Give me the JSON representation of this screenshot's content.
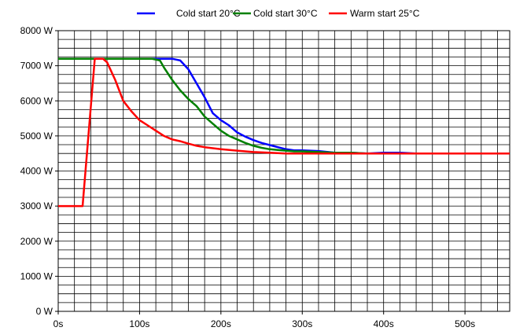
{
  "chart_data": {
    "type": "line",
    "title": "",
    "xlabel": "",
    "ylabel": "",
    "xlim": [
      0,
      555
    ],
    "ylim": [
      0,
      8000
    ],
    "x_ticks": [
      0,
      100,
      200,
      300,
      400,
      500
    ],
    "x_tick_labels": [
      "0s",
      "100s",
      "200s",
      "300s",
      "400s",
      "500s"
    ],
    "y_ticks": [
      0,
      1000,
      2000,
      3000,
      4000,
      5000,
      6000,
      7000,
      8000
    ],
    "y_tick_labels": [
      "0 W",
      "1000 W",
      "2000 W",
      "3000 W",
      "4000 W",
      "5000 W",
      "6000 W",
      "7000 W",
      "8000 W"
    ],
    "grid": true,
    "legend_position": "top-center",
    "series": [
      {
        "name": "Cold start 20°C",
        "color": "#0000ff",
        "x": [
          0,
          20,
          40,
          60,
          80,
          100,
          120,
          140,
          150,
          160,
          170,
          180,
          190,
          200,
          210,
          220,
          230,
          240,
          250,
          260,
          270,
          280,
          290,
          300,
          320,
          340,
          360,
          380,
          400,
          420,
          440,
          460,
          480,
          500,
          520,
          540,
          555
        ],
        "y": [
          7200,
          7200,
          7200,
          7200,
          7200,
          7200,
          7200,
          7200,
          7150,
          6900,
          6500,
          6100,
          5650,
          5450,
          5300,
          5100,
          4980,
          4880,
          4800,
          4740,
          4680,
          4620,
          4590,
          4590,
          4570,
          4520,
          4520,
          4500,
          4520,
          4520,
          4500,
          4500,
          4500,
          4500,
          4500,
          4500,
          4500
        ]
      },
      {
        "name": "Cold start 30°C",
        "color": "#008000",
        "x": [
          0,
          20,
          40,
          60,
          80,
          100,
          115,
          125,
          130,
          140,
          150,
          160,
          170,
          180,
          190,
          200,
          210,
          220,
          230,
          240,
          250,
          260,
          270,
          280,
          290,
          300,
          320,
          340,
          360,
          380,
          400,
          420,
          440,
          460,
          480,
          500,
          520,
          540,
          555
        ],
        "y": [
          7200,
          7200,
          7200,
          7200,
          7200,
          7200,
          7200,
          7150,
          6950,
          6600,
          6300,
          6050,
          5850,
          5550,
          5350,
          5150,
          5000,
          4900,
          4800,
          4720,
          4660,
          4620,
          4600,
          4580,
          4560,
          4560,
          4540,
          4520,
          4520,
          4500,
          4500,
          4500,
          4500,
          4500,
          4500,
          4500,
          4500,
          4500,
          4500
        ]
      },
      {
        "name": "Warm start 25°C",
        "color": "#ff0000",
        "x": [
          0,
          30,
          45,
          55,
          60,
          70,
          80,
          90,
          100,
          110,
          120,
          130,
          140,
          150,
          160,
          170,
          180,
          190,
          200,
          220,
          240,
          260,
          280,
          300,
          340,
          380,
          420,
          460,
          500,
          555
        ],
        "y": [
          3000,
          3000,
          7200,
          7200,
          7100,
          6600,
          6000,
          5700,
          5450,
          5300,
          5150,
          5000,
          4900,
          4850,
          4780,
          4720,
          4680,
          4650,
          4620,
          4580,
          4540,
          4520,
          4500,
          4500,
          4500,
          4500,
          4500,
          4500,
          4500,
          4500
        ]
      }
    ]
  }
}
